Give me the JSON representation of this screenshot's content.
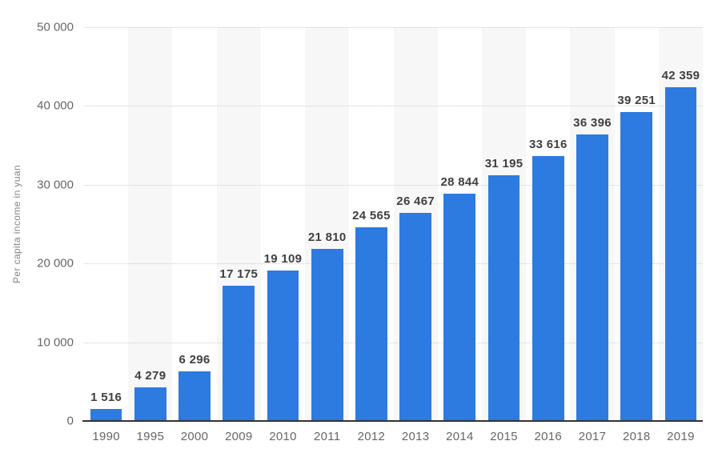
{
  "chart_data": {
    "type": "bar",
    "title": "",
    "xlabel": "",
    "ylabel": "Per capita income in yuan",
    "categories": [
      "1990",
      "1995",
      "2000",
      "2009",
      "2010",
      "2011",
      "2012",
      "2013",
      "2014",
      "2015",
      "2016",
      "2017",
      "2018",
      "2019"
    ],
    "values": [
      1516,
      4279,
      6296,
      17175,
      19109,
      21810,
      24565,
      26467,
      28844,
      31195,
      33616,
      36396,
      39251,
      42359
    ],
    "value_labels": [
      "1 516",
      "4 279",
      "6 296",
      "17 175",
      "19 109",
      "21 810",
      "24 565",
      "26 467",
      "28 844",
      "31 195",
      "33 616",
      "36 396",
      "39 251",
      "42 359"
    ],
    "ylim": [
      0,
      50000
    ],
    "yticks": [
      0,
      10000,
      20000,
      30000,
      40000,
      50000
    ],
    "ytick_labels": [
      "0",
      "10 000",
      "20 000",
      "30 000",
      "40 000",
      "50 000"
    ],
    "grid": "horizontal-dotted",
    "legend": "none",
    "colors": {
      "bar": "#2d7ae0",
      "band": "#f7f7f7",
      "value_label": "#404040",
      "tick_label": "#666666",
      "axis_line": "#333333",
      "gridline": "#cccccc",
      "y_title": "#848484",
      "background": "#ffffff"
    }
  }
}
